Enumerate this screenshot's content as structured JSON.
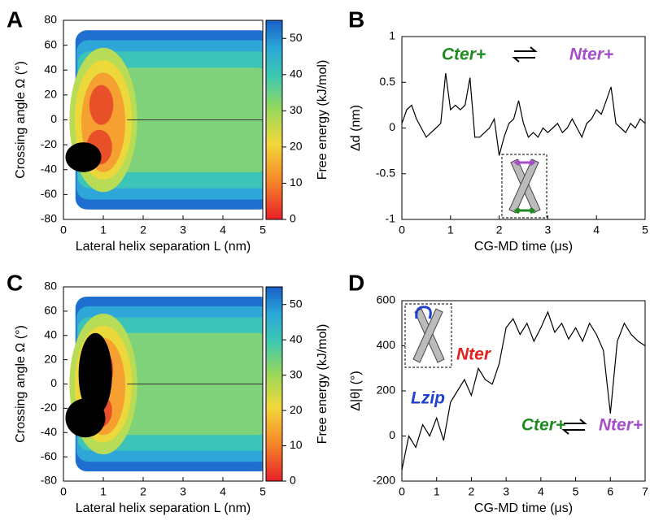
{
  "chart_data": [
    {
      "type": "heatmap",
      "panel": "A",
      "xlabel": "Lateral helix separation L (nm)",
      "ylabel": "Crossing angle Ω (°)",
      "xlim": [
        0,
        5
      ],
      "xticks": [
        0,
        1,
        2,
        3,
        4,
        5
      ],
      "ylim": [
        -80,
        80
      ],
      "yticks": [
        -80,
        -60,
        -40,
        -20,
        0,
        20,
        40,
        60,
        80
      ],
      "colorbar": {
        "label": "Free energy (kJ/mol)",
        "lim": [
          0,
          55
        ],
        "ticks": [
          0,
          10,
          20,
          30,
          40,
          50
        ]
      }
    },
    {
      "type": "line",
      "panel": "B",
      "xlabel": "CG-MD time (μs)",
      "ylabel": "Δd (nm)",
      "color": "#000000",
      "xlim": [
        0,
        5
      ],
      "xticks": [
        0,
        1,
        2,
        3,
        4,
        5
      ],
      "ylim": [
        -1,
        1
      ],
      "yticks": [
        -1,
        -0.5,
        0,
        0.5,
        1
      ],
      "x": [
        0,
        0.1,
        0.2,
        0.3,
        0.4,
        0.5,
        0.6,
        0.7,
        0.8,
        0.9,
        1.0,
        1.1,
        1.2,
        1.3,
        1.4,
        1.5,
        1.6,
        1.7,
        1.8,
        1.9,
        2.0,
        2.1,
        2.2,
        2.3,
        2.4,
        2.5,
        2.6,
        2.7,
        2.8,
        2.9,
        3.0,
        3.1,
        3.2,
        3.3,
        3.4,
        3.5,
        3.6,
        3.7,
        3.8,
        3.9,
        4.0,
        4.1,
        4.2,
        4.3,
        4.4,
        4.5,
        4.6,
        4.7,
        4.8,
        4.9,
        5.0
      ],
      "values": [
        0.05,
        0.2,
        0.25,
        0.1,
        0,
        -0.1,
        -0.05,
        0,
        0.05,
        0.6,
        0.2,
        0.25,
        0.2,
        0.25,
        0.55,
        -0.1,
        -0.1,
        -0.05,
        0,
        0.1,
        -0.3,
        -0.1,
        0.05,
        0.1,
        0.3,
        0.05,
        -0.1,
        -0.05,
        -0.1,
        0,
        -0.05,
        0,
        0.05,
        -0.05,
        0,
        0.1,
        0,
        -0.1,
        0.05,
        0.1,
        0.2,
        0.15,
        0.3,
        0.45,
        0.05,
        0,
        -0.05,
        0.05,
        0,
        0.1,
        0.05
      ],
      "annotations": [
        {
          "text": "Cter+",
          "color": "#1f8a1f"
        },
        {
          "text": "Nter+",
          "color": "#a64dc8"
        }
      ]
    },
    {
      "type": "heatmap",
      "panel": "C",
      "xlabel": "Lateral helix separation L (nm)",
      "ylabel": "Crossing angle Ω (°)",
      "xlim": [
        0,
        5
      ],
      "xticks": [
        0,
        1,
        2,
        3,
        4,
        5
      ],
      "ylim": [
        -80,
        80
      ],
      "yticks": [
        -80,
        -60,
        -40,
        -20,
        0,
        20,
        40,
        60,
        80
      ],
      "colorbar": {
        "label": "Free energy (kJ/mol)",
        "lim": [
          0,
          55
        ],
        "ticks": [
          0,
          10,
          20,
          30,
          40,
          50
        ]
      }
    },
    {
      "type": "line",
      "panel": "D",
      "xlabel": "CG-MD time (μs)",
      "ylabel": "Δ|θ| (°)",
      "color": "#000000",
      "xlim": [
        0,
        7
      ],
      "xticks": [
        0,
        1,
        2,
        3,
        4,
        5,
        6,
        7
      ],
      "ylim": [
        -200,
        600
      ],
      "yticks": [
        -200,
        0,
        200,
        400,
        600
      ],
      "x": [
        0,
        0.2,
        0.4,
        0.6,
        0.8,
        1.0,
        1.2,
        1.4,
        1.6,
        1.8,
        2.0,
        2.2,
        2.4,
        2.6,
        2.8,
        3.0,
        3.2,
        3.4,
        3.6,
        3.8,
        4.0,
        4.2,
        4.4,
        4.6,
        4.8,
        5.0,
        5.2,
        5.4,
        5.6,
        5.8,
        6.0,
        6.2,
        6.4,
        6.6,
        6.8,
        7.0
      ],
      "values": [
        -150,
        0,
        -50,
        50,
        0,
        80,
        -20,
        150,
        200,
        250,
        180,
        300,
        250,
        230,
        320,
        480,
        520,
        450,
        500,
        420,
        480,
        550,
        460,
        500,
        430,
        480,
        420,
        500,
        450,
        380,
        100,
        420,
        500,
        450,
        420,
        400
      ],
      "annotations": [
        {
          "text": "Nter",
          "color": "#e5201c"
        },
        {
          "text": "Lzip",
          "color": "#1f3fcf"
        },
        {
          "text": "Cter+",
          "color": "#1f8a1f"
        },
        {
          "text": "Nter+",
          "color": "#a64dc8"
        }
      ]
    }
  ]
}
